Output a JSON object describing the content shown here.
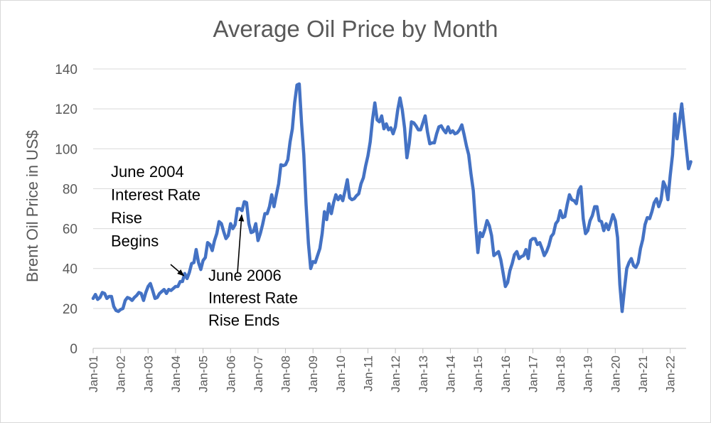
{
  "chart_data": {
    "type": "line",
    "title": "Average Oil Price by Month",
    "ylabel": "Brent Oil Price in US$",
    "xlabel": "",
    "ylim": [
      0,
      140
    ],
    "y_ticks": [
      "0",
      "20",
      "40",
      "60",
      "80",
      "100",
      "120",
      "140"
    ],
    "x_tick_labels": [
      "Jan-01",
      "Jan-02",
      "Jan-03",
      "Jan-04",
      "Jan-05",
      "Jan-06",
      "Jan-07",
      "Jan-08",
      "Jan-09",
      "Jan-10",
      "Jan-11",
      "Jan-12",
      "Jan-13",
      "Jan-14",
      "Jan-15",
      "Jan-16",
      "Jan-17",
      "Jan-18",
      "Jan-19",
      "Jan-20",
      "Jan-21",
      "Jan-22"
    ],
    "grid": true,
    "legend": "none",
    "line_color": "#4472C4",
    "series": [
      {
        "points": [
          [
            "2001-01",
            25
          ],
          [
            "2001-02",
            27
          ],
          [
            "2001-03",
            24.5
          ],
          [
            "2001-04",
            25.5
          ],
          [
            "2001-05",
            28
          ],
          [
            "2001-06",
            27.5
          ],
          [
            "2001-07",
            25
          ],
          [
            "2001-08",
            26
          ],
          [
            "2001-09",
            26
          ],
          [
            "2001-10",
            21
          ],
          [
            "2001-11",
            19
          ],
          [
            "2001-12",
            18.5
          ],
          [
            "2002-01",
            19.5
          ],
          [
            "2002-02",
            20
          ],
          [
            "2002-03",
            24
          ],
          [
            "2002-04",
            25.5
          ],
          [
            "2002-05",
            25
          ],
          [
            "2002-06",
            24
          ],
          [
            "2002-07",
            25.5
          ],
          [
            "2002-08",
            26.5
          ],
          [
            "2002-09",
            28
          ],
          [
            "2002-10",
            27.5
          ],
          [
            "2002-11",
            24
          ],
          [
            "2002-12",
            28
          ],
          [
            "2003-01",
            31
          ],
          [
            "2003-02",
            32.5
          ],
          [
            "2003-03",
            29
          ],
          [
            "2003-04",
            25
          ],
          [
            "2003-05",
            25.5
          ],
          [
            "2003-06",
            27.5
          ],
          [
            "2003-07",
            28.5
          ],
          [
            "2003-08",
            29.5
          ],
          [
            "2003-09",
            27.5
          ],
          [
            "2003-10",
            29.5
          ],
          [
            "2003-11",
            29
          ],
          [
            "2003-12",
            30
          ],
          [
            "2004-01",
            31
          ],
          [
            "2004-02",
            31
          ],
          [
            "2004-03",
            33.5
          ],
          [
            "2004-04",
            33.5
          ],
          [
            "2004-05",
            37.5
          ],
          [
            "2004-06",
            35
          ],
          [
            "2004-07",
            38
          ],
          [
            "2004-08",
            42.5
          ],
          [
            "2004-09",
            43
          ],
          [
            "2004-10",
            49.5
          ],
          [
            "2004-11",
            43
          ],
          [
            "2004-12",
            39.5
          ],
          [
            "2005-01",
            44
          ],
          [
            "2005-02",
            45.5
          ],
          [
            "2005-03",
            53
          ],
          [
            "2005-04",
            52
          ],
          [
            "2005-05",
            49
          ],
          [
            "2005-06",
            54
          ],
          [
            "2005-07",
            57.5
          ],
          [
            "2005-08",
            63.5
          ],
          [
            "2005-09",
            62.5
          ],
          [
            "2005-10",
            58.5
          ],
          [
            "2005-11",
            55
          ],
          [
            "2005-12",
            56.5
          ],
          [
            "2006-01",
            62.5
          ],
          [
            "2006-02",
            60
          ],
          [
            "2006-03",
            62
          ],
          [
            "2006-04",
            70
          ],
          [
            "2006-05",
            70
          ],
          [
            "2006-06",
            69
          ],
          [
            "2006-07",
            73.5
          ],
          [
            "2006-08",
            73
          ],
          [
            "2006-09",
            62.5
          ],
          [
            "2006-10",
            58
          ],
          [
            "2006-11",
            58.5
          ],
          [
            "2006-12",
            62.5
          ],
          [
            "2007-01",
            54
          ],
          [
            "2007-02",
            57.5
          ],
          [
            "2007-03",
            62
          ],
          [
            "2007-04",
            67.5
          ],
          [
            "2007-05",
            67.5
          ],
          [
            "2007-06",
            71
          ],
          [
            "2007-07",
            77
          ],
          [
            "2007-08",
            71
          ],
          [
            "2007-09",
            77
          ],
          [
            "2007-10",
            82.5
          ],
          [
            "2007-11",
            92
          ],
          [
            "2007-12",
            91.5
          ],
          [
            "2008-01",
            92
          ],
          [
            "2008-02",
            94.5
          ],
          [
            "2008-03",
            103.5
          ],
          [
            "2008-04",
            110
          ],
          [
            "2008-05",
            123
          ],
          [
            "2008-06",
            132
          ],
          [
            "2008-07",
            132.5
          ],
          [
            "2008-08",
            113
          ],
          [
            "2008-09",
            97
          ],
          [
            "2008-10",
            72
          ],
          [
            "2008-11",
            52.5
          ],
          [
            "2008-12",
            40
          ],
          [
            "2009-01",
            43.5
          ],
          [
            "2009-02",
            43
          ],
          [
            "2009-03",
            46.5
          ],
          [
            "2009-04",
            50
          ],
          [
            "2009-05",
            57.5
          ],
          [
            "2009-06",
            68.5
          ],
          [
            "2009-07",
            64.5
          ],
          [
            "2009-08",
            72.5
          ],
          [
            "2009-09",
            67.5
          ],
          [
            "2009-10",
            73
          ],
          [
            "2009-11",
            77
          ],
          [
            "2009-12",
            74.5
          ],
          [
            "2010-01",
            76.5
          ],
          [
            "2010-02",
            74
          ],
          [
            "2010-03",
            79
          ],
          [
            "2010-04",
            84.5
          ],
          [
            "2010-05",
            75.5
          ],
          [
            "2010-06",
            74.5
          ],
          [
            "2010-07",
            75
          ],
          [
            "2010-08",
            76.5
          ],
          [
            "2010-09",
            77.5
          ],
          [
            "2010-10",
            82.5
          ],
          [
            "2010-11",
            85.5
          ],
          [
            "2010-12",
            91.5
          ],
          [
            "2011-01",
            96.5
          ],
          [
            "2011-02",
            103.5
          ],
          [
            "2011-03",
            114.5
          ],
          [
            "2011-04",
            123
          ],
          [
            "2011-05",
            114.5
          ],
          [
            "2011-06",
            113.5
          ],
          [
            "2011-07",
            116.5
          ],
          [
            "2011-08",
            110
          ],
          [
            "2011-09",
            112.5
          ],
          [
            "2011-10",
            109.5
          ],
          [
            "2011-11",
            110.5
          ],
          [
            "2011-12",
            107.5
          ],
          [
            "2012-01",
            111
          ],
          [
            "2012-02",
            119.5
          ],
          [
            "2012-03",
            125.5
          ],
          [
            "2012-04",
            119.5
          ],
          [
            "2012-05",
            110.5
          ],
          [
            "2012-06",
            95.5
          ],
          [
            "2012-07",
            102.5
          ],
          [
            "2012-08",
            113.5
          ],
          [
            "2012-09",
            113
          ],
          [
            "2012-10",
            111.5
          ],
          [
            "2012-11",
            109.5
          ],
          [
            "2012-12",
            109.5
          ],
          [
            "2013-01",
            113
          ],
          [
            "2013-02",
            116.5
          ],
          [
            "2013-03",
            108.5
          ],
          [
            "2013-04",
            102.5
          ],
          [
            "2013-05",
            103
          ],
          [
            "2013-06",
            103
          ],
          [
            "2013-07",
            107.5
          ],
          [
            "2013-08",
            111
          ],
          [
            "2013-09",
            111.5
          ],
          [
            "2013-10",
            109.5
          ],
          [
            "2013-11",
            108
          ],
          [
            "2013-12",
            111
          ],
          [
            "2014-01",
            108
          ],
          [
            "2014-02",
            109
          ],
          [
            "2014-03",
            107.5
          ],
          [
            "2014-04",
            108
          ],
          [
            "2014-05",
            109.5
          ],
          [
            "2014-06",
            112
          ],
          [
            "2014-07",
            107
          ],
          [
            "2014-08",
            101.5
          ],
          [
            "2014-09",
            97
          ],
          [
            "2014-10",
            87.5
          ],
          [
            "2014-11",
            79
          ],
          [
            "2014-12",
            62.5
          ],
          [
            "2015-01",
            48
          ],
          [
            "2015-02",
            58
          ],
          [
            "2015-03",
            56
          ],
          [
            "2015-04",
            59.5
          ],
          [
            "2015-05",
            64
          ],
          [
            "2015-06",
            61.5
          ],
          [
            "2015-07",
            56.5
          ],
          [
            "2015-08",
            46.5
          ],
          [
            "2015-09",
            47.5
          ],
          [
            "2015-10",
            48.5
          ],
          [
            "2015-11",
            44.5
          ],
          [
            "2015-12",
            38
          ],
          [
            "2016-01",
            31
          ],
          [
            "2016-02",
            33
          ],
          [
            "2016-03",
            39
          ],
          [
            "2016-04",
            42.5
          ],
          [
            "2016-05",
            47
          ],
          [
            "2016-06",
            48.5
          ],
          [
            "2016-07",
            45
          ],
          [
            "2016-08",
            46
          ],
          [
            "2016-09",
            46.5
          ],
          [
            "2016-10",
            49.5
          ],
          [
            "2016-11",
            45
          ],
          [
            "2016-12",
            54
          ],
          [
            "2017-01",
            55
          ],
          [
            "2017-02",
            55
          ],
          [
            "2017-03",
            52
          ],
          [
            "2017-04",
            53
          ],
          [
            "2017-05",
            50
          ],
          [
            "2017-06",
            46.5
          ],
          [
            "2017-07",
            48.5
          ],
          [
            "2017-08",
            51.5
          ],
          [
            "2017-09",
            56
          ],
          [
            "2017-10",
            57.5
          ],
          [
            "2017-11",
            62.5
          ],
          [
            "2017-12",
            64
          ],
          [
            "2018-01",
            69
          ],
          [
            "2018-02",
            65.5
          ],
          [
            "2018-03",
            66
          ],
          [
            "2018-04",
            72
          ],
          [
            "2018-05",
            77
          ],
          [
            "2018-06",
            74.5
          ],
          [
            "2018-07",
            74
          ],
          [
            "2018-08",
            72.5
          ],
          [
            "2018-09",
            79
          ],
          [
            "2018-10",
            81
          ],
          [
            "2018-11",
            65
          ],
          [
            "2018-12",
            57.5
          ],
          [
            "2019-01",
            59
          ],
          [
            "2019-02",
            64
          ],
          [
            "2019-03",
            66.5
          ],
          [
            "2019-04",
            71
          ],
          [
            "2019-05",
            71
          ],
          [
            "2019-06",
            64
          ],
          [
            "2019-07",
            63.5
          ],
          [
            "2019-08",
            59
          ],
          [
            "2019-09",
            62.5
          ],
          [
            "2019-10",
            59.5
          ],
          [
            "2019-11",
            63
          ],
          [
            "2019-12",
            67
          ],
          [
            "2020-01",
            64
          ],
          [
            "2020-02",
            55.5
          ],
          [
            "2020-03",
            32
          ],
          [
            "2020-04",
            18.5
          ],
          [
            "2020-05",
            29.5
          ],
          [
            "2020-06",
            40
          ],
          [
            "2020-07",
            43
          ],
          [
            "2020-08",
            45
          ],
          [
            "2020-09",
            41.5
          ],
          [
            "2020-10",
            40.5
          ],
          [
            "2020-11",
            43
          ],
          [
            "2020-12",
            50
          ],
          [
            "2021-01",
            54.5
          ],
          [
            "2021-02",
            62
          ],
          [
            "2021-03",
            65.5
          ],
          [
            "2021-04",
            65
          ],
          [
            "2021-05",
            68.5
          ],
          [
            "2021-06",
            73
          ],
          [
            "2021-07",
            75
          ],
          [
            "2021-08",
            71
          ],
          [
            "2021-09",
            74.5
          ],
          [
            "2021-10",
            83.5
          ],
          [
            "2021-11",
            81
          ],
          [
            "2021-12",
            74.5
          ],
          [
            "2022-01",
            86.5
          ],
          [
            "2022-02",
            97
          ],
          [
            "2022-03",
            117.5
          ],
          [
            "2022-04",
            105
          ],
          [
            "2022-05",
            113
          ],
          [
            "2022-06",
            122.5
          ],
          [
            "2022-07",
            111.5
          ],
          [
            "2022-08",
            100.5
          ],
          [
            "2022-09",
            90
          ],
          [
            "2022-10",
            93.5
          ]
        ]
      }
    ],
    "annotations": [
      {
        "lines": [
          "June 2004",
          "Interest Rate",
          "Rise",
          "Begins"
        ],
        "target": [
          "2004-06",
          35
        ]
      },
      {
        "lines": [
          "June 2006",
          "Interest Rate",
          "Rise Ends"
        ],
        "target": [
          "2006-06",
          69
        ]
      }
    ]
  }
}
